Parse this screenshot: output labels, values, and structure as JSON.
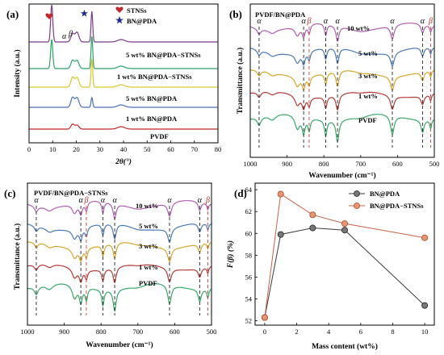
{
  "chart_data": [
    {
      "type": "line",
      "panel_label": "(a)",
      "xlabel": "2θ(°)",
      "ylabel": "Intensity (a.u.)",
      "xlim": [
        0,
        80
      ],
      "xticks": [
        0,
        10,
        20,
        30,
        40,
        50,
        60,
        70,
        80
      ],
      "legend": [
        {
          "name": "STNSs",
          "marker": "heart",
          "color": "#c0282c"
        },
        {
          "name": "BN@PDA",
          "marker": "star",
          "color": "#1f2a8a"
        }
      ],
      "peak_labels": [
        "α",
        "β"
      ],
      "series": [
        {
          "name": "5 wt% BN@PDA−STNSs",
          "color": "#7a3c8c"
        },
        {
          "name": "1 wt% BN@PDA−STNSs",
          "color": "#2aa36a"
        },
        {
          "name": "5 wt% BN@PDA",
          "color": "#d9c92a"
        },
        {
          "name": "1 wt% BN@PDA",
          "color": "#4a6fb5"
        },
        {
          "name": "PVDF",
          "color": "#c0282c"
        }
      ],
      "peaks_2theta": {
        "STNSs": 9.6,
        "alpha": 18.4,
        "beta": 20.3,
        "BN@PDA": 26.6
      }
    },
    {
      "type": "line",
      "panel_label": "(b)",
      "title": "PVDF/BN@PDA",
      "xlabel": "Wavenumber (cm⁻¹)",
      "ylabel": "Transmittance (a.u.)",
      "xlim": [
        1000,
        500
      ],
      "xticks": [
        1000,
        900,
        800,
        700,
        600,
        500
      ],
      "series": [
        {
          "name": "10 wt%",
          "color": "#b05fb0"
        },
        {
          "name": "5 wt%",
          "color": "#4a78b8"
        },
        {
          "name": "3 wt%",
          "color": "#d4a62a"
        },
        {
          "name": "1 wt%",
          "color": "#b83a3a"
        },
        {
          "name": "PVDF",
          "color": "#3aa86a"
        }
      ],
      "alpha_bands": [
        976,
        855,
        795,
        763,
        614,
        532
      ],
      "beta_bands": [
        840,
        510
      ],
      "band_marks": [
        "α",
        "α",
        "β",
        "α",
        "α",
        "α",
        "α",
        "β"
      ]
    },
    {
      "type": "line",
      "panel_label": "(c)",
      "title": "PVDF/BN@PDA−STNSs",
      "xlabel": "Wavenumber (cm⁻¹)",
      "ylabel": "Transmittance (a.u.)",
      "xlim": [
        1000,
        500
      ],
      "xticks": [
        1000,
        900,
        800,
        700,
        600,
        500
      ],
      "series": [
        {
          "name": "10 wt%",
          "color": "#b05fb0"
        },
        {
          "name": "5 wt%",
          "color": "#4a78b8"
        },
        {
          "name": "3 wt%",
          "color": "#d4a62a"
        },
        {
          "name": "1 wt%",
          "color": "#b83a3a"
        },
        {
          "name": "PVDF",
          "color": "#3aa86a"
        }
      ],
      "alpha_bands": [
        976,
        855,
        795,
        763,
        614,
        532
      ],
      "beta_bands": [
        840,
        510
      ],
      "band_marks": [
        "α",
        "α",
        "β",
        "α",
        "α",
        "α",
        "α",
        "β"
      ]
    },
    {
      "type": "line",
      "panel_label": "(d)",
      "xlabel": "Mass content (wt%)",
      "ylabel": "F(β) (%)",
      "xlim": [
        -0.6,
        10.6
      ],
      "ylim": [
        51.6,
        64.6
      ],
      "xticks": [
        0,
        2,
        4,
        6,
        8,
        10
      ],
      "yticks": [
        52,
        54,
        56,
        58,
        60,
        62,
        64
      ],
      "legend_position": "top-right",
      "series": [
        {
          "name": "BN@PDA",
          "color": "#3a3a3a",
          "x": [
            0,
            1,
            3,
            5,
            10
          ],
          "y": [
            52.3,
            59.9,
            60.5,
            60.3,
            53.4
          ]
        },
        {
          "name": "BN@PDA−STNSs",
          "color": "#c9614a",
          "x": [
            0,
            1,
            3,
            5,
            10
          ],
          "y": [
            52.3,
            63.6,
            61.7,
            60.9,
            59.6
          ]
        }
      ]
    }
  ]
}
